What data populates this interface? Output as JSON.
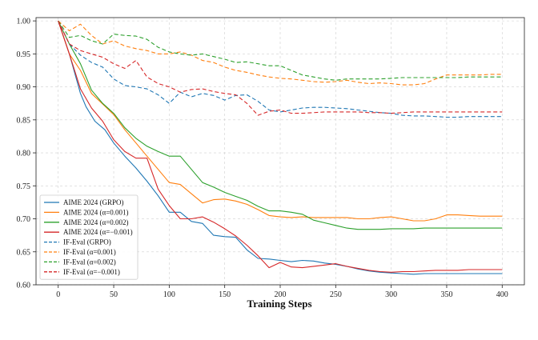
{
  "chart_data": {
    "type": "line",
    "title": "",
    "xlabel": "Training Steps",
    "ylabel": "",
    "xlim": [
      -20,
      420
    ],
    "ylim": [
      0.6,
      1.005
    ],
    "xticks": [
      0,
      50,
      100,
      150,
      200,
      250,
      300,
      350,
      400
    ],
    "xtick_labels": [
      "0",
      "50",
      "100",
      "150",
      "200",
      "250",
      "300",
      "350",
      "400"
    ],
    "yticks": [
      0.6,
      0.65,
      0.7,
      0.75,
      0.8,
      0.85,
      0.9,
      0.95,
      1.0
    ],
    "ytick_labels": [
      "0.60",
      "0.65",
      "0.70",
      "0.75",
      "0.80",
      "0.85",
      "0.90",
      "0.95",
      "1.00"
    ],
    "grid": true,
    "legend_position": "bottom-left",
    "series": [
      {
        "name": "AIME 2024 (GRPO)",
        "color": "#1f77b4",
        "style": "solid",
        "x": [
          0,
          10,
          20,
          25,
          33,
          42,
          50,
          60,
          70,
          80,
          90,
          100,
          110,
          120,
          130,
          140,
          150,
          160,
          170,
          180,
          190,
          200,
          210,
          220,
          230,
          240,
          250,
          260,
          270,
          280,
          290,
          300,
          310,
          320,
          330,
          340,
          350,
          360,
          370,
          380,
          390,
          400
        ],
        "values": [
          1.0,
          0.95,
          0.89,
          0.87,
          0.848,
          0.835,
          0.815,
          0.795,
          0.777,
          0.757,
          0.735,
          0.71,
          0.71,
          0.696,
          0.693,
          0.675,
          0.673,
          0.672,
          0.653,
          0.64,
          0.639,
          0.637,
          0.635,
          0.637,
          0.636,
          0.633,
          0.631,
          0.628,
          0.624,
          0.621,
          0.619,
          0.618,
          0.617,
          0.616,
          0.617,
          0.617,
          0.617,
          0.617,
          0.617,
          0.617,
          0.617,
          0.617
        ]
      },
      {
        "name": "AIME 2024 (α=0.001)",
        "color": "#ff7f0e",
        "style": "solid",
        "x": [
          0,
          10,
          20,
          30,
          40,
          50,
          60,
          70,
          80,
          90,
          100,
          110,
          120,
          130,
          140,
          150,
          160,
          170,
          180,
          190,
          200,
          210,
          220,
          230,
          240,
          250,
          260,
          270,
          280,
          290,
          300,
          310,
          320,
          330,
          340,
          350,
          360,
          370,
          380,
          390,
          400
        ],
        "values": [
          1.0,
          0.95,
          0.925,
          0.89,
          0.874,
          0.858,
          0.835,
          0.815,
          0.795,
          0.775,
          0.755,
          0.752,
          0.738,
          0.724,
          0.729,
          0.73,
          0.727,
          0.722,
          0.714,
          0.705,
          0.703,
          0.702,
          0.703,
          0.702,
          0.702,
          0.702,
          0.702,
          0.7,
          0.7,
          0.702,
          0.703,
          0.7,
          0.697,
          0.697,
          0.7,
          0.706,
          0.706,
          0.705,
          0.704,
          0.704,
          0.704
        ]
      },
      {
        "name": "AIME 2024 (α=0.002)",
        "color": "#2ca02c",
        "style": "solid",
        "x": [
          0,
          10,
          20,
          30,
          40,
          50,
          60,
          70,
          80,
          90,
          100,
          110,
          120,
          130,
          140,
          150,
          160,
          170,
          180,
          190,
          200,
          210,
          220,
          230,
          240,
          250,
          260,
          270,
          280,
          290,
          300,
          310,
          320,
          330,
          340,
          350,
          360,
          370,
          380,
          390,
          400
        ],
        "values": [
          1.0,
          0.965,
          0.935,
          0.895,
          0.875,
          0.86,
          0.838,
          0.822,
          0.81,
          0.802,
          0.795,
          0.795,
          0.775,
          0.755,
          0.748,
          0.74,
          0.734,
          0.728,
          0.719,
          0.712,
          0.712,
          0.71,
          0.707,
          0.698,
          0.694,
          0.69,
          0.686,
          0.684,
          0.684,
          0.684,
          0.685,
          0.685,
          0.685,
          0.686,
          0.686,
          0.686,
          0.686,
          0.686,
          0.686,
          0.686,
          0.686
        ]
      },
      {
        "name": "AIME 2024 (α=−0.001)",
        "color": "#d62728",
        "style": "solid",
        "x": [
          0,
          10,
          20,
          30,
          40,
          50,
          60,
          70,
          80,
          90,
          100,
          110,
          120,
          130,
          140,
          150,
          160,
          170,
          180,
          190,
          200,
          210,
          220,
          230,
          240,
          250,
          260,
          270,
          280,
          290,
          300,
          310,
          320,
          330,
          340,
          350,
          360,
          370,
          380,
          390,
          400
        ],
        "values": [
          1.0,
          0.95,
          0.897,
          0.868,
          0.848,
          0.82,
          0.802,
          0.792,
          0.792,
          0.745,
          0.72,
          0.7,
          0.7,
          0.703,
          0.695,
          0.685,
          0.674,
          0.66,
          0.644,
          0.626,
          0.634,
          0.627,
          0.626,
          0.628,
          0.63,
          0.632,
          0.628,
          0.625,
          0.622,
          0.62,
          0.619,
          0.62,
          0.62,
          0.621,
          0.622,
          0.622,
          0.622,
          0.623,
          0.623,
          0.623,
          0.623
        ]
      },
      {
        "name": "IF-Eval (GRPO)",
        "color": "#1f77b4",
        "style": "dashed",
        "x": [
          0,
          10,
          20,
          30,
          40,
          50,
          60,
          70,
          80,
          90,
          100,
          110,
          120,
          130,
          140,
          150,
          160,
          170,
          180,
          190,
          200,
          210,
          220,
          230,
          240,
          250,
          260,
          270,
          280,
          290,
          300,
          310,
          320,
          330,
          340,
          350,
          360,
          370,
          380,
          390,
          400
        ],
        "values": [
          1.0,
          0.965,
          0.948,
          0.937,
          0.93,
          0.912,
          0.902,
          0.9,
          0.897,
          0.888,
          0.875,
          0.892,
          0.885,
          0.89,
          0.887,
          0.88,
          0.887,
          0.888,
          0.878,
          0.865,
          0.862,
          0.865,
          0.868,
          0.869,
          0.869,
          0.868,
          0.867,
          0.865,
          0.863,
          0.861,
          0.86,
          0.857,
          0.856,
          0.856,
          0.855,
          0.854,
          0.854,
          0.855,
          0.855,
          0.855,
          0.855
        ]
      },
      {
        "name": "IF-Eval (α=0.001)",
        "color": "#ff7f0e",
        "style": "dashed",
        "x": [
          0,
          10,
          20,
          30,
          40,
          50,
          60,
          70,
          80,
          90,
          100,
          110,
          120,
          130,
          140,
          150,
          160,
          170,
          180,
          190,
          200,
          210,
          220,
          230,
          240,
          250,
          260,
          270,
          280,
          290,
          300,
          310,
          320,
          330,
          340,
          350,
          360,
          370,
          380,
          390,
          400
        ],
        "values": [
          1.0,
          0.985,
          0.995,
          0.978,
          0.965,
          0.97,
          0.962,
          0.958,
          0.955,
          0.95,
          0.95,
          0.953,
          0.948,
          0.94,
          0.937,
          0.93,
          0.925,
          0.922,
          0.918,
          0.915,
          0.913,
          0.912,
          0.91,
          0.908,
          0.907,
          0.908,
          0.91,
          0.907,
          0.905,
          0.906,
          0.905,
          0.903,
          0.903,
          0.905,
          0.912,
          0.918,
          0.918,
          0.918,
          0.918,
          0.919,
          0.919
        ]
      },
      {
        "name": "IF-Eval (α=0.002)",
        "color": "#2ca02c",
        "style": "dashed",
        "x": [
          0,
          10,
          20,
          30,
          40,
          50,
          60,
          70,
          80,
          90,
          100,
          110,
          120,
          130,
          140,
          150,
          160,
          170,
          180,
          190,
          200,
          210,
          220,
          230,
          240,
          250,
          260,
          270,
          280,
          290,
          300,
          310,
          320,
          330,
          340,
          350,
          360,
          370,
          380,
          390,
          400
        ],
        "values": [
          1.0,
          0.975,
          0.978,
          0.97,
          0.965,
          0.98,
          0.978,
          0.977,
          0.972,
          0.96,
          0.953,
          0.95,
          0.948,
          0.95,
          0.946,
          0.942,
          0.937,
          0.938,
          0.935,
          0.932,
          0.932,
          0.925,
          0.918,
          0.915,
          0.912,
          0.91,
          0.912,
          0.912,
          0.912,
          0.912,
          0.913,
          0.914,
          0.914,
          0.914,
          0.914,
          0.914,
          0.914,
          0.915,
          0.915,
          0.915,
          0.915
        ]
      },
      {
        "name": "IF-Eval (α=−0.001)",
        "color": "#d62728",
        "style": "dashed",
        "x": [
          0,
          10,
          20,
          30,
          40,
          50,
          60,
          70,
          80,
          90,
          100,
          110,
          120,
          130,
          140,
          150,
          160,
          170,
          180,
          190,
          200,
          210,
          220,
          230,
          240,
          250,
          260,
          270,
          280,
          290,
          300,
          310,
          320,
          330,
          340,
          350,
          360,
          370,
          380,
          390,
          400
        ],
        "values": [
          1.0,
          0.965,
          0.955,
          0.95,
          0.945,
          0.935,
          0.928,
          0.94,
          0.915,
          0.905,
          0.9,
          0.892,
          0.896,
          0.897,
          0.893,
          0.89,
          0.888,
          0.875,
          0.857,
          0.863,
          0.865,
          0.86,
          0.86,
          0.861,
          0.862,
          0.862,
          0.862,
          0.862,
          0.861,
          0.861,
          0.86,
          0.861,
          0.862,
          0.862,
          0.862,
          0.862,
          0.862,
          0.862,
          0.862,
          0.862,
          0.862
        ]
      }
    ]
  }
}
